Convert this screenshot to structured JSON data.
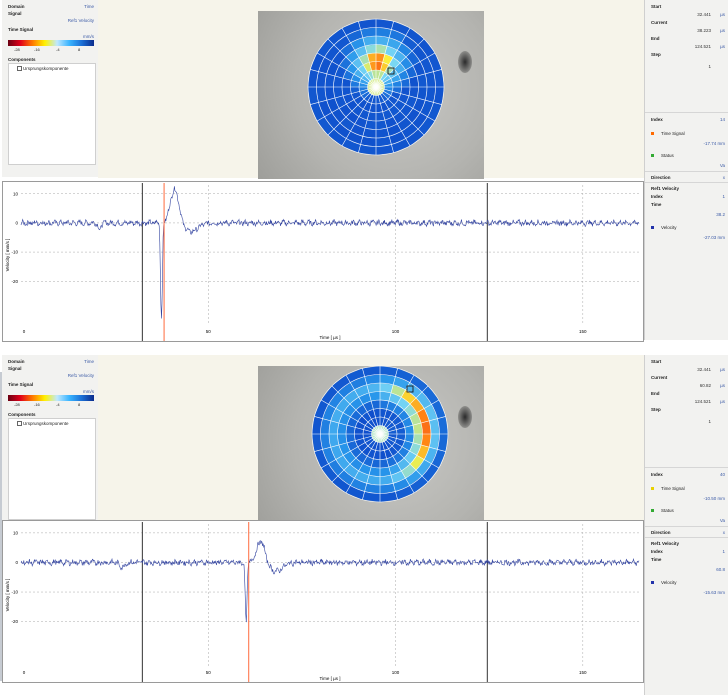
{
  "screens": [
    {
      "left_panel": {
        "domain_label": "Domain",
        "domain_value": "Time",
        "signal_label": "Signal",
        "signal_value": "Ref1 Velocity",
        "timesignal_label": "Time Signal",
        "colorbar_unit": "mm/s",
        "colorbar_ticks": [
          "-28",
          "-16",
          "-4",
          "8"
        ],
        "components_label": "Components",
        "component_item": "Ursprungskomponente"
      },
      "right_panel": {
        "start_label": "Start",
        "start_value": "32.441",
        "start_unit": "µs",
        "current_label": "Current",
        "current_value": "38.223",
        "current_unit": "µs",
        "end_label": "End",
        "end_value": "124.521",
        "end_unit": "µs",
        "step_label": "Step",
        "step_value": "1",
        "index_label": "Index",
        "index_value": "14",
        "timesignal_label": "Time Signal",
        "timesignal_value": "-17.74 mm",
        "status_label": "Status",
        "status_value": "Va",
        "direction_label": "Direction",
        "direction_value": "x",
        "ref1_label": "Ref1 Velocity",
        "index2_label": "Index",
        "index2_value": "1",
        "time_label": "Time",
        "time_value": "38.2",
        "velocity_label": "Velocity",
        "velocity_value": "-27.03 mm"
      },
      "chart_data": {
        "type": "line",
        "xlabel": "Time [ µs ]",
        "ylabel": "Velocity [ mm/s ]",
        "xlim": [
          0,
          165
        ],
        "ylim": [
          -35,
          13
        ],
        "x_ticks": [
          "0",
          "50",
          "100",
          "150"
        ],
        "y_ticks": [
          "10",
          "0",
          "-10",
          "-20"
        ],
        "cursor_time": 38.2,
        "window_start": 32.4,
        "window_end": 124.5,
        "pulse": {
          "start": 37.4,
          "peak_min": -33,
          "peak_max": 11.5,
          "peak_max_time": 41
        }
      }
    },
    {
      "left_panel": {
        "domain_label": "Domain",
        "domain_value": "Time",
        "signal_label": "Signal",
        "signal_value": "Ref1 Velocity",
        "timesignal_label": "Time Signal",
        "colorbar_unit": "mm/s",
        "colorbar_ticks": [
          "-28",
          "-16",
          "-4",
          "8"
        ],
        "components_label": "Components",
        "component_item": "Ursprungskomponente"
      },
      "right_panel": {
        "start_label": "Start",
        "start_value": "32.441",
        "start_unit": "µs",
        "current_label": "Current",
        "current_value": "60.82",
        "current_unit": "µs",
        "end_label": "End",
        "end_value": "124.521",
        "end_unit": "µs",
        "step_label": "Step",
        "step_value": "1",
        "index_label": "Index",
        "index_value": "40",
        "timesignal_label": "Time Signal",
        "timesignal_value": "-10.50 mm",
        "status_label": "Status",
        "status_value": "Va",
        "direction_label": "Direction",
        "direction_value": "x",
        "ref1_label": "Ref1 Velocity",
        "index2_label": "Index",
        "index2_value": "1",
        "time_label": "Time",
        "time_value": "60.8",
        "velocity_label": "Velocity",
        "velocity_value": "-15.63 mm"
      },
      "chart_data": {
        "type": "line",
        "xlabel": "Time [ µs ]",
        "ylabel": "Velocity [ mm/s ]",
        "xlim": [
          0,
          165
        ],
        "ylim": [
          -35,
          13
        ],
        "x_ticks": [
          "0",
          "50",
          "100",
          "150"
        ],
        "y_ticks": [
          "10",
          "0",
          "-10",
          "-20"
        ],
        "cursor_time": 60.8,
        "window_start": 32.4,
        "window_end": 124.5,
        "pulse": {
          "start": 60.0,
          "peak_min": -20,
          "peak_max": 7,
          "peak_max_time": 64
        }
      }
    }
  ],
  "colors": {
    "signal": "#3344a0",
    "cursor": "#ff6a3d",
    "window": "#333333",
    "grid": "#a8a8a8",
    "dot_timesignal_1": "#ff6a00",
    "dot_timesignal_2": "#e8d100",
    "dot_status": "#33aa33",
    "dot_velocity": "#2233aa"
  }
}
